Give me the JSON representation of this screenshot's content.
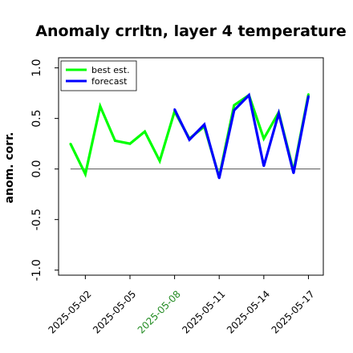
{
  "chart_data": {
    "type": "line",
    "title": "Anomaly crrltn, layer 4 temperature",
    "ylabel": "anom. corr.",
    "xlabel": "",
    "ylim": [
      -1.05,
      1.1
    ],
    "yticks": [
      -1.0,
      -0.5,
      0.0,
      0.5,
      1.0
    ],
    "ytick_labels": [
      "-1.0",
      "-0.5",
      "0.0",
      "0.5",
      "1.0"
    ],
    "xtick_labels": [
      "2025-05-02",
      "2025-05-05",
      "2025-05-08",
      "2025-05-11",
      "2025-05-14",
      "2025-05-17"
    ],
    "xtick_colors": [
      "#000000",
      "#000000",
      "#228B22",
      "#000000",
      "#000000",
      "#000000"
    ],
    "xtick_positions": [
      2,
      5,
      8,
      11,
      14,
      17
    ],
    "xlim": [
      0.2,
      18.0
    ],
    "zero_line": true,
    "grid": false,
    "legend_position": "top-left",
    "series": [
      {
        "name": "best est.",
        "color": "#00ff00",
        "x": [
          1,
          2,
          3,
          4,
          5,
          6,
          7,
          8,
          9,
          10,
          11,
          12,
          13,
          14,
          15,
          16,
          17
        ],
        "values": [
          0.25,
          -0.05,
          0.62,
          0.28,
          0.25,
          0.37,
          0.08,
          0.57,
          0.3,
          0.42,
          -0.08,
          0.63,
          0.73,
          0.3,
          0.56,
          -0.02,
          0.74
        ]
      },
      {
        "name": "forecast",
        "color": "#0000ff",
        "x": [
          8,
          9,
          10,
          11,
          12,
          13,
          14,
          15,
          16,
          17
        ],
        "values": [
          0.59,
          0.29,
          0.44,
          -0.09,
          0.58,
          0.73,
          0.03,
          0.55,
          -0.04,
          0.72
        ]
      }
    ]
  }
}
